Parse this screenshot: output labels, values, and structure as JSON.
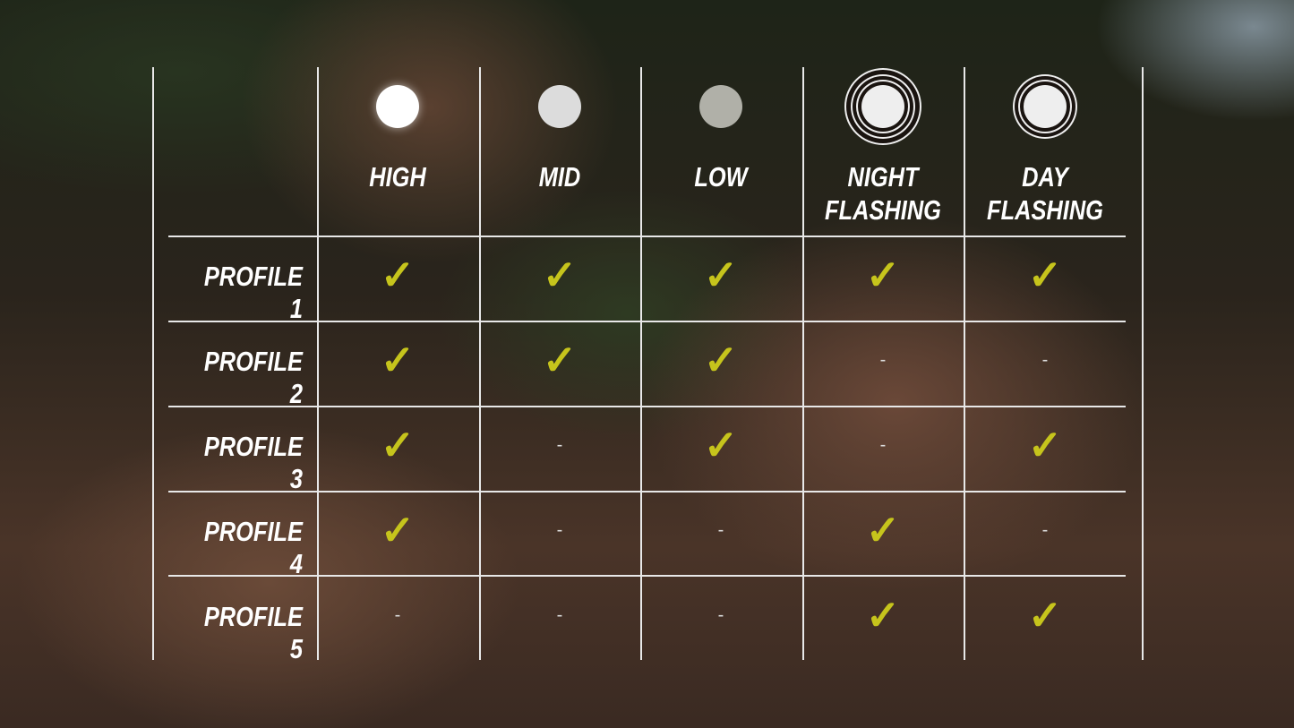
{
  "columns": [
    {
      "label": [
        "HIGH",
        ""
      ],
      "icon": "light-dot-bright",
      "color": "#ffffff",
      "rings": 0
    },
    {
      "label": [
        "MID",
        ""
      ],
      "icon": "light-dot-medium",
      "color": "#dcdcdc",
      "rings": 0
    },
    {
      "label": [
        "LOW",
        ""
      ],
      "icon": "light-dot-dim",
      "color": "#b0b0a8",
      "rings": 0
    },
    {
      "label": [
        "NIGHT",
        "FLASHING"
      ],
      "icon": "light-dot-triple-ring",
      "color": "#eeeeee",
      "rings": 3
    },
    {
      "label": [
        "DAY",
        "FLASHING"
      ],
      "icon": "light-dot-double-ring",
      "color": "#eeeeee",
      "rings": 2
    }
  ],
  "rows": [
    {
      "label": "PROFILE 1",
      "values": [
        true,
        true,
        true,
        true,
        true
      ]
    },
    {
      "label": "PROFILE 2",
      "values": [
        true,
        true,
        true,
        false,
        false
      ]
    },
    {
      "label": "PROFILE 3",
      "values": [
        true,
        false,
        true,
        false,
        true
      ]
    },
    {
      "label": "PROFILE 4",
      "values": [
        true,
        false,
        false,
        true,
        false
      ]
    },
    {
      "label": "PROFILE 5",
      "values": [
        false,
        false,
        false,
        true,
        true
      ]
    }
  ],
  "symbols": {
    "check": "✓",
    "dash": "-"
  },
  "colors": {
    "check": "#c6c41c",
    "grid": "#e8e8e8"
  }
}
